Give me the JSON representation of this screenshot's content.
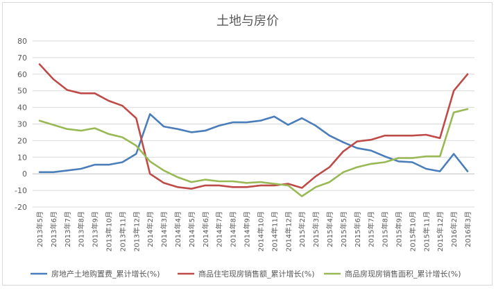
{
  "chart_data": {
    "type": "line",
    "title": "土地与房价",
    "xlabel": "",
    "ylabel": "",
    "ylim": [
      -20,
      80
    ],
    "yticks": [
      -20,
      -10,
      0,
      10,
      20,
      30,
      40,
      50,
      60,
      70,
      80
    ],
    "grid": true,
    "legend_position": "bottom",
    "categories": [
      "2013年5月",
      "2013年6月",
      "2013年7月",
      "2013年8月",
      "2013年9月",
      "2013年10月",
      "2013年11月",
      "2013年12月",
      "2014年2月",
      "2014年3月",
      "2014年4月",
      "2014年5月",
      "2014年6月",
      "2014年7月",
      "2014年8月",
      "2014年9月",
      "2014年10月",
      "2014年11月",
      "2014年12月",
      "2015年2月",
      "2015年3月",
      "2015年4月",
      "2015年5月",
      "2015年6月",
      "2015年7月",
      "2015年8月",
      "2015年9月",
      "2015年10月",
      "2015年11月",
      "2015年12月",
      "2016年2月",
      "2016年3月"
    ],
    "series": [
      {
        "name": "房地产土地购置费_累计增长(%)",
        "color": "#4a7ebb",
        "values": [
          1,
          1,
          2,
          3,
          5.5,
          5.5,
          7,
          12,
          36,
          28.5,
          27,
          25,
          26,
          29,
          31,
          31,
          32,
          34.5,
          29.5,
          33.5,
          29,
          23,
          19,
          15.5,
          14,
          10.5,
          7.5,
          7,
          3,
          1.5,
          12,
          1.5
        ]
      },
      {
        "name": "商品住宅现房销售额_累计增长(%)",
        "color": "#be4b48",
        "values": [
          66,
          57,
          50.5,
          48.5,
          48.5,
          44,
          41,
          33.5,
          0,
          -5.5,
          -8,
          -9,
          -7,
          -7,
          -8,
          -8,
          -7,
          -7,
          -6,
          -8.5,
          -1.5,
          4,
          13.5,
          19.5,
          20.5,
          23,
          23,
          23,
          23.5,
          21.5,
          50,
          60
        ]
      },
      {
        "name": "商品房现房销售面积_累计增长(%)",
        "color": "#98b954",
        "values": [
          32,
          29.5,
          27,
          26,
          27.5,
          24,
          22,
          17,
          7.5,
          2,
          -2,
          -5,
          -3.5,
          -4.5,
          -4.5,
          -5.5,
          -5,
          -6,
          -7,
          -13.5,
          -8,
          -5,
          1,
          4,
          6,
          7,
          9.5,
          9.5,
          10.5,
          10.5,
          37,
          39
        ]
      }
    ]
  }
}
